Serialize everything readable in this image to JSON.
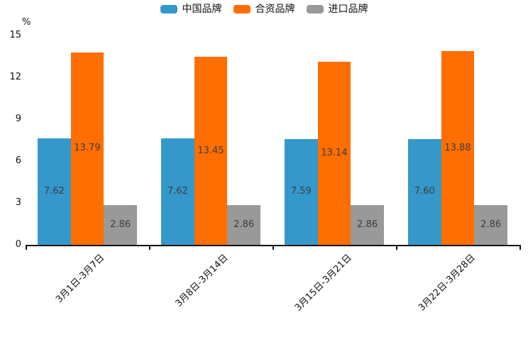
{
  "chart_data": {
    "type": "bar",
    "title": "",
    "ylabel_unit": "%",
    "categories": [
      "3月1日-3月7日",
      "3月8日-3月14日",
      "3月15日-3月21日",
      "3月22日-3月28日"
    ],
    "series": [
      {
        "name": "中国品牌",
        "color": "#3498cb",
        "values": [
          7.62,
          7.62,
          7.59,
          7.6
        ]
      },
      {
        "name": "合资品牌",
        "color": "#ff6e00",
        "values": [
          13.79,
          13.45,
          13.14,
          13.88
        ]
      },
      {
        "name": "进口品牌",
        "color": "#999999",
        "values": [
          2.86,
          2.86,
          2.86,
          2.86
        ]
      }
    ],
    "value_label_decimals": 2,
    "ylim": [
      0,
      15
    ],
    "yticks": [
      0,
      3,
      6,
      9,
      12,
      15
    ],
    "grid": false,
    "legend_position": "top",
    "axis_color": "#111111",
    "value_label_color": "#3d3d3d"
  }
}
